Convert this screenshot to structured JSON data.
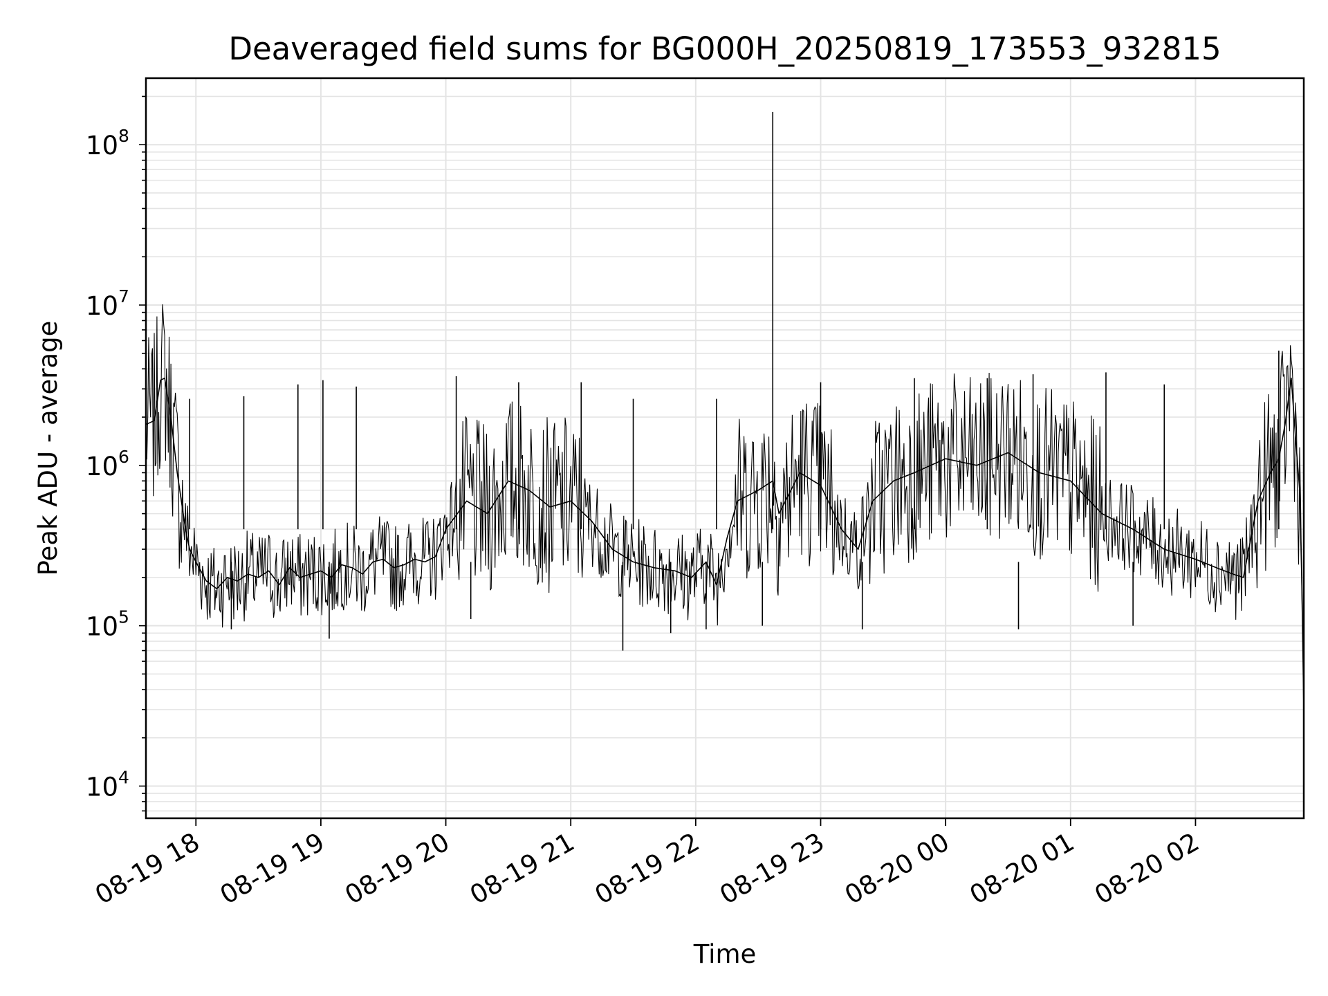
{
  "chart_data": {
    "type": "line",
    "title": "Deaveraged field sums for BG000H_20250819_173553_932815",
    "xlabel": "Time",
    "ylabel": "Peak ADU - average",
    "yscale": "log",
    "ylim": [
      6300,
      260000000
    ],
    "xlim": [
      "2025-08-19 17:36",
      "2025-08-20 02:52"
    ],
    "grid": true,
    "line_color": "#000000",
    "x_ticks": [
      {
        "label": "08-19 18",
        "time": "2025-08-19 18:00"
      },
      {
        "label": "08-19 19",
        "time": "2025-08-19 19:00"
      },
      {
        "label": "08-19 20",
        "time": "2025-08-19 20:00"
      },
      {
        "label": "08-19 21",
        "time": "2025-08-19 21:00"
      },
      {
        "label": "08-19 22",
        "time": "2025-08-19 22:00"
      },
      {
        "label": "08-19 23",
        "time": "2025-08-19 23:00"
      },
      {
        "label": "08-20 00",
        "time": "2025-08-20 00:00"
      },
      {
        "label": "08-20 01",
        "time": "2025-08-20 01:00"
      },
      {
        "label": "08-20 02",
        "time": "2025-08-20 02:00"
      }
    ],
    "y_ticks": [
      {
        "base": "10",
        "exp": "4",
        "value": 10000
      },
      {
        "base": "10",
        "exp": "5",
        "value": 100000
      },
      {
        "base": "10",
        "exp": "6",
        "value": 1000000
      },
      {
        "base": "10",
        "exp": "7",
        "value": 10000000
      },
      {
        "base": "10",
        "exp": "8",
        "value": 100000000
      }
    ],
    "series": [
      {
        "x": [
          "2025-08-19 17:36",
          "2025-08-19 17:40",
          "2025-08-19 17:43",
          "2025-08-19 17:45",
          "2025-08-19 17:48",
          "2025-08-19 17:51",
          "2025-08-19 17:53",
          "2025-08-19 17:55",
          "2025-08-19 17:57",
          "2025-08-19 18:00",
          "2025-08-19 18:05",
          "2025-08-19 18:10",
          "2025-08-19 18:15",
          "2025-08-19 18:20",
          "2025-08-19 18:25",
          "2025-08-19 18:30",
          "2025-08-19 18:35",
          "2025-08-19 18:40",
          "2025-08-19 18:45",
          "2025-08-19 18:50",
          "2025-08-19 18:55",
          "2025-08-19 19:00",
          "2025-08-19 19:05",
          "2025-08-19 19:10",
          "2025-08-19 19:15",
          "2025-08-19 19:20",
          "2025-08-19 19:25",
          "2025-08-19 19:30",
          "2025-08-19 19:35",
          "2025-08-19 19:40",
          "2025-08-19 19:45",
          "2025-08-19 19:50",
          "2025-08-19 19:55",
          "2025-08-19 20:00",
          "2025-08-19 20:10",
          "2025-08-19 20:20",
          "2025-08-19 20:30",
          "2025-08-19 20:40",
          "2025-08-19 20:50",
          "2025-08-19 21:00",
          "2025-08-19 21:10",
          "2025-08-19 21:20",
          "2025-08-19 21:30",
          "2025-08-19 21:40",
          "2025-08-19 21:50",
          "2025-08-19 21:58",
          "2025-08-19 22:05",
          "2025-08-19 22:10",
          "2025-08-19 22:15",
          "2025-08-19 22:20",
          "2025-08-19 22:30",
          "2025-08-19 22:37",
          "2025-08-19 22:40",
          "2025-08-19 22:50",
          "2025-08-19 23:00",
          "2025-08-19 23:10",
          "2025-08-19 23:18",
          "2025-08-19 23:25",
          "2025-08-19 23:35",
          "2025-08-19 23:45",
          "2025-08-20 00:00",
          "2025-08-20 00:15",
          "2025-08-20 00:30",
          "2025-08-20 00:45",
          "2025-08-20 01:00",
          "2025-08-20 01:15",
          "2025-08-20 01:30",
          "2025-08-20 01:45",
          "2025-08-20 02:00",
          "2025-08-20 02:10",
          "2025-08-20 02:18",
          "2025-08-20 02:23",
          "2025-08-20 02:30",
          "2025-08-20 02:36",
          "2025-08-20 02:40",
          "2025-08-20 02:43",
          "2025-08-20 02:46",
          "2025-08-20 02:48",
          "2025-08-20 02:50",
          "2025-08-20 02:51",
          "2025-08-20 02:52"
        ],
        "y": [
          1800000,
          1900000,
          3400000,
          3500000,
          2000000,
          900000,
          600000,
          400000,
          300000,
          250000,
          190000,
          170000,
          200000,
          190000,
          210000,
          200000,
          220000,
          180000,
          230000,
          200000,
          210000,
          220000,
          200000,
          240000,
          230000,
          210000,
          250000,
          260000,
          230000,
          240000,
          260000,
          250000,
          270000,
          400000,
          600000,
          500000,
          800000,
          700000,
          550000,
          600000,
          450000,
          300000,
          250000,
          230000,
          220000,
          200000,
          250000,
          180000,
          350000,
          600000,
          700000,
          800000,
          500000,
          900000,
          750000,
          400000,
          300000,
          600000,
          800000,
          900000,
          1100000,
          1000000,
          1200000,
          900000,
          800000,
          500000,
          400000,
          300000,
          260000,
          230000,
          210000,
          200000,
          600000,
          900000,
          1100000,
          1800000,
          3500000,
          1500000,
          700000,
          200000,
          30000
        ]
      }
    ],
    "spikes_high": [
      {
        "x": "2025-08-19 22:37",
        "y": 160000000
      },
      {
        "x": "2025-08-19 17:57",
        "y": 2600000
      },
      {
        "x": "2025-08-19 18:23",
        "y": 2700000
      },
      {
        "x": "2025-08-19 18:49",
        "y": 3200000
      },
      {
        "x": "2025-08-19 19:01",
        "y": 3400000
      },
      {
        "x": "2025-08-19 19:17",
        "y": 3100000
      },
      {
        "x": "2025-08-19 20:05",
        "y": 3600000
      },
      {
        "x": "2025-08-19 20:35",
        "y": 3300000
      },
      {
        "x": "2025-08-19 21:05",
        "y": 3300000
      },
      {
        "x": "2025-08-19 21:30",
        "y": 2600000
      },
      {
        "x": "2025-08-19 22:10",
        "y": 2600000
      },
      {
        "x": "2025-08-19 23:00",
        "y": 3300000
      },
      {
        "x": "2025-08-19 23:45",
        "y": 3500000
      },
      {
        "x": "2025-08-20 00:20",
        "y": 3500000
      },
      {
        "x": "2025-08-20 00:42",
        "y": 3700000
      },
      {
        "x": "2025-08-20 01:17",
        "y": 3800000
      },
      {
        "x": "2025-08-20 01:45",
        "y": 3200000
      },
      {
        "x": "2025-08-20 02:40",
        "y": 5200000
      }
    ],
    "spikes_low": [
      {
        "x": "2025-08-19 18:17",
        "y": 95000
      },
      {
        "x": "2025-08-19 19:04",
        "y": 83000
      },
      {
        "x": "2025-08-19 20:12",
        "y": 110000
      },
      {
        "x": "2025-08-19 21:25",
        "y": 70000
      },
      {
        "x": "2025-08-19 21:48",
        "y": 90000
      },
      {
        "x": "2025-08-19 22:05",
        "y": 95000
      },
      {
        "x": "2025-08-19 22:32",
        "y": 100000
      },
      {
        "x": "2025-08-19 23:20",
        "y": 95000
      },
      {
        "x": "2025-08-20 00:35",
        "y": 95000
      },
      {
        "x": "2025-08-20 01:30",
        "y": 100000
      },
      {
        "x": "2025-08-20 02:52",
        "y": 10500
      }
    ]
  }
}
